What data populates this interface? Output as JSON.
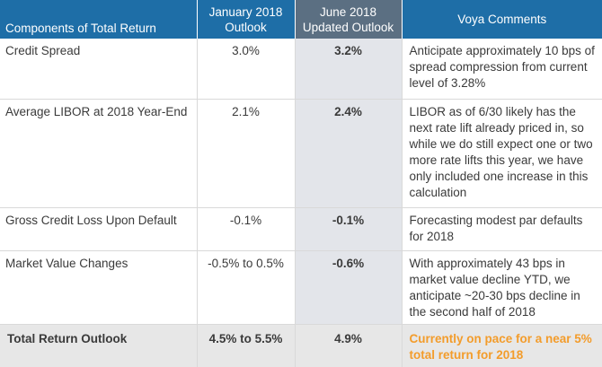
{
  "table": {
    "headers": {
      "components": "Components of Total Return",
      "january_line1": "January 2018",
      "january_line2": "Outlook",
      "june_line1": "June 2018",
      "june_line2": "Updated Outlook",
      "comments": "Voya Comments"
    },
    "rows": [
      {
        "component": "Credit Spread",
        "january": "3.0%",
        "june": "3.2%",
        "comment": "Anticipate approximately 10 bps of spread compression from current level of 3.28%"
      },
      {
        "component": "Average LIBOR at 2018 Year-End",
        "january": "2.1%",
        "june": "2.4%",
        "comment": "LIBOR as of 6/30 likely has the next rate lift already priced in, so while we do still expect one or two more rate lifts this year, we have only included one increase in this calculation"
      },
      {
        "component": "Gross Credit Loss Upon Default",
        "january": "-0.1%",
        "june": "-0.1%",
        "comment": "Forecasting modest par defaults for 2018"
      },
      {
        "component": "Market Value Changes",
        "january": "-0.5% to 0.5%",
        "june": "-0.6%",
        "comment": "With approximately 43 bps in market value decline YTD, we anticipate ~20-30 bps decline in the second half of 2018"
      }
    ],
    "total": {
      "component": "Total Return Outlook",
      "january": "4.5% to 5.5%",
      "june": "4.9%",
      "comment": "Currently on pace for a near 5% total return for 2018"
    }
  },
  "colors": {
    "header_blue": "#1e6ea7",
    "header_slate": "#5b6f82",
    "highlight_column": "#e3e5ea",
    "total_row": "#e7e7e7",
    "total_comment_orange": "#f39c2b"
  }
}
